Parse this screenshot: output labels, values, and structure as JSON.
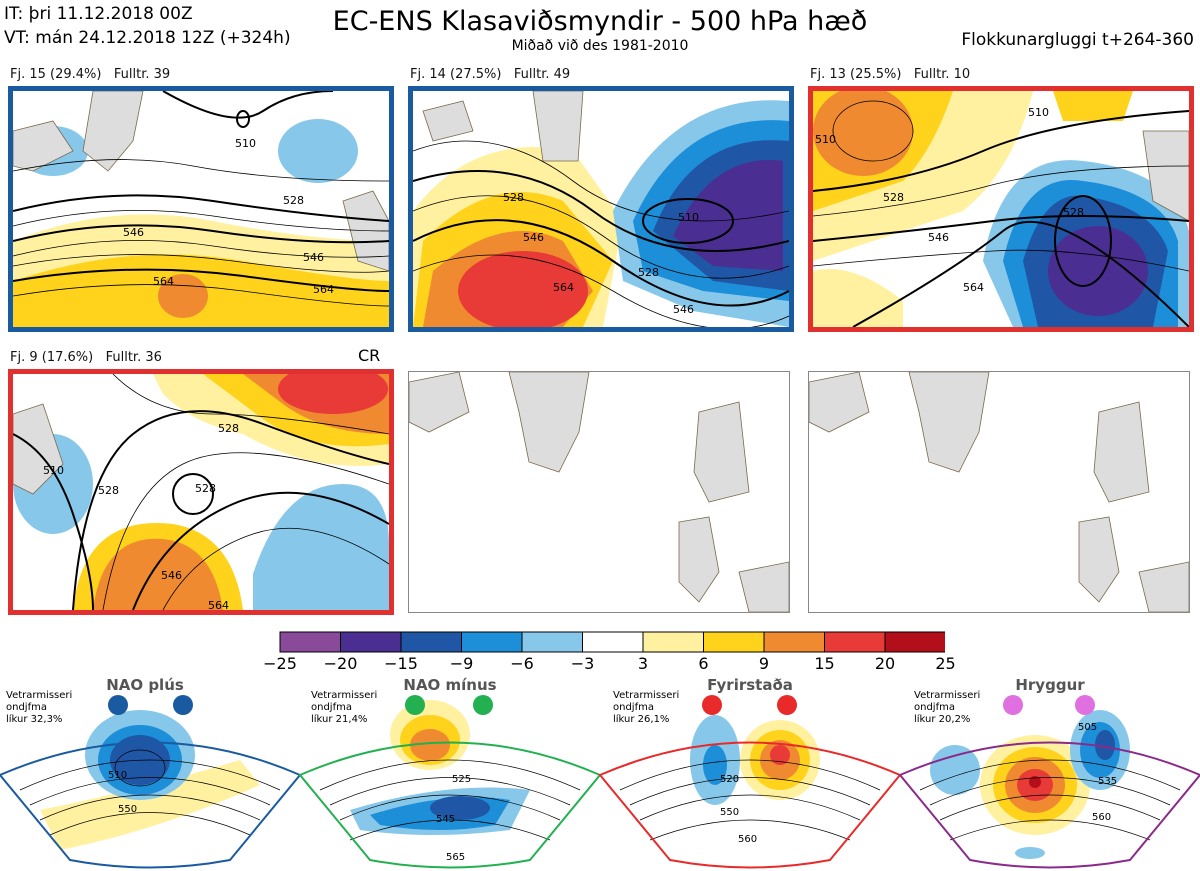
{
  "header": {
    "init_line": "IT: þri 11.12.2018 00Z",
    "valid_line": "VT: mán 24.12.2018 12Z  (+324h)",
    "title": "EC-ENS Klasaviðsmyndir - 500 hPa hæð",
    "subtitle": "Miðað við des 1981-2010",
    "window": "Flokkunargluggi t+264-360"
  },
  "panels": [
    {
      "label": "Fj. 15 (29.4%)   Fulltr. 39",
      "border": "#1a5aa0",
      "contours": [
        "528",
        "546",
        "564",
        "546",
        "564",
        "510"
      ]
    },
    {
      "label": "Fj. 14 (27.5%)   Fulltr. 49",
      "border": "#1a5aa0",
      "contours": [
        "528",
        "546",
        "564",
        "510",
        "528",
        "546"
      ]
    },
    {
      "label": "Fj. 13 (25.5%)   Fulltr. 10",
      "border": "#e03030",
      "contours": [
        "510",
        "528",
        "546",
        "564",
        "528",
        "510"
      ]
    },
    {
      "label": "Fj. 9 (17.6%)   Fulltr. 36",
      "border": "#e03030",
      "contours": [
        "528",
        "546",
        "564",
        "528",
        "528",
        "510"
      ]
    }
  ],
  "cr_label": "CR",
  "colorbar": {
    "ticks": [
      "−25",
      "−20",
      "−15",
      "−9",
      "−6",
      "−3",
      "3",
      "6",
      "9",
      "15",
      "20",
      "25"
    ],
    "colors": [
      "#8a4a9a",
      "#4a2e92",
      "#1f57a6",
      "#1d8ed8",
      "#86c7ea",
      "#ffffff",
      "#fff1a0",
      "#ffd21c",
      "#f08a30",
      "#e83a36",
      "#b30f1a"
    ]
  },
  "regimes": [
    {
      "title": "NAO plús",
      "stat": "Vetrarmisseri\nondjfma\nlíkur 32,3%",
      "dot": "#1a5aa0",
      "frame": "#1a5aa0",
      "contours": [
        "510",
        "550"
      ]
    },
    {
      "title": "NAO mínus",
      "stat": "Vetrarmisseri\nondjfma\nlíkur 21,4%",
      "dot": "#22b050",
      "frame": "#22b050",
      "contours": [
        "525",
        "545",
        "565"
      ]
    },
    {
      "title": "Fyrirstaða",
      "stat": "Vetrarmisseri\nondjfma\nlíkur 26,1%",
      "dot": "#e82a2a",
      "frame": "#e82a2a",
      "contours": [
        "520",
        "550",
        "560"
      ]
    },
    {
      "title": "Hryggur",
      "stat": "Vetrarmisseri\nondjfma\nlíkur 20,2%",
      "dot": "#e070e0",
      "frame": "#8a2a8a",
      "contours": [
        "505",
        "535",
        "560"
      ]
    }
  ]
}
